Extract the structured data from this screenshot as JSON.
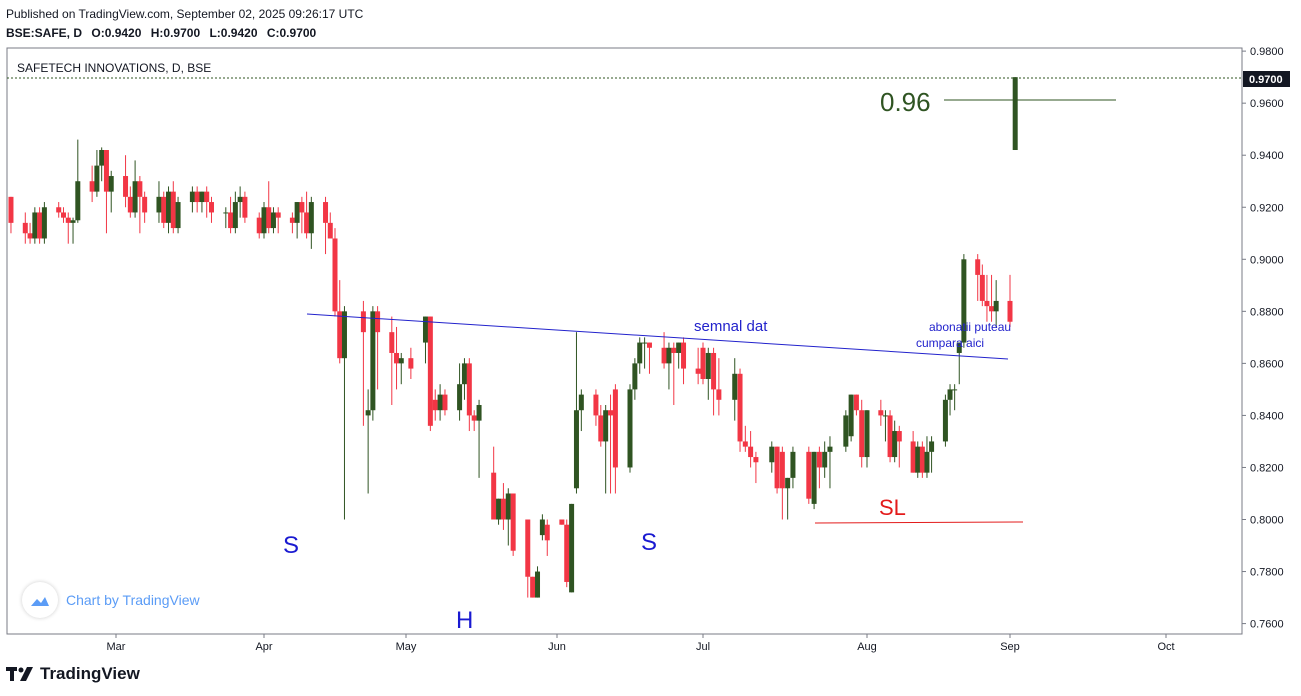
{
  "header": {
    "published": "Published on TradingView.com, September 02, 2025 09:26:17 UTC",
    "symbol": "BSE:SAFE, D",
    "open": "O:0.9420",
    "high": "H:0.9700",
    "low": "L:0.9420",
    "close": "C:0.9700"
  },
  "branding": {
    "watermark": "Chart by TradingView",
    "footer_logo": "TradingView"
  },
  "colors": {
    "up": "#2f5422",
    "down": "#f23645",
    "trendline": "#2222cc",
    "target": "#2f5422",
    "stop": "#e31b1b",
    "axis_text": "#131722",
    "price_tag_bg": "#131722"
  },
  "chart_data": {
    "type": "candlestick",
    "title": "SAFETECH INNOVATIONS, D, BSE",
    "ylim": [
      0.756,
      0.9812
    ],
    "x_ticks": [
      "Mar",
      "Apr",
      "May",
      "Jun",
      "Jul",
      "Aug",
      "Sep",
      "Oct"
    ],
    "y_ticks": [
      "0.9800",
      "0.9600",
      "0.9400",
      "0.9200",
      "0.9000",
      "0.8800",
      "0.8600",
      "0.8400",
      "0.8200",
      "0.8000",
      "0.7800",
      "0.7600"
    ],
    "last_price": "0.9700",
    "candles": [
      {
        "date": "2025-02-07",
        "o": 0.924,
        "h": 0.924,
        "l": 0.91,
        "c": 0.914
      },
      {
        "date": "2025-02-10",
        "o": 0.914,
        "h": 0.918,
        "l": 0.906,
        "c": 0.91
      },
      {
        "date": "2025-02-11",
        "o": 0.91,
        "h": 0.914,
        "l": 0.906,
        "c": 0.908
      },
      {
        "date": "2025-02-12",
        "o": 0.908,
        "h": 0.92,
        "l": 0.906,
        "c": 0.918
      },
      {
        "date": "2025-02-13",
        "o": 0.918,
        "h": 0.92,
        "l": 0.906,
        "c": 0.908
      },
      {
        "date": "2025-02-14",
        "o": 0.908,
        "h": 0.922,
        "l": 0.906,
        "c": 0.92
      },
      {
        "date": "2025-02-17",
        "o": 0.92,
        "h": 0.922,
        "l": 0.916,
        "c": 0.918
      },
      {
        "date": "2025-02-18",
        "o": 0.918,
        "h": 0.92,
        "l": 0.914,
        "c": 0.916
      },
      {
        "date": "2025-02-19",
        "o": 0.916,
        "h": 0.918,
        "l": 0.906,
        "c": 0.914
      },
      {
        "date": "2025-02-20",
        "o": 0.914,
        "h": 0.916,
        "l": 0.906,
        "c": 0.915
      },
      {
        "date": "2025-02-21",
        "o": 0.915,
        "h": 0.946,
        "l": 0.914,
        "c": 0.93
      },
      {
        "date": "2025-02-24",
        "o": 0.93,
        "h": 0.936,
        "l": 0.922,
        "c": 0.926
      },
      {
        "date": "2025-02-25",
        "o": 0.926,
        "h": 0.942,
        "l": 0.924,
        "c": 0.936
      },
      {
        "date": "2025-02-26",
        "o": 0.936,
        "h": 0.943,
        "l": 0.93,
        "c": 0.942
      },
      {
        "date": "2025-02-27",
        "o": 0.942,
        "h": 0.942,
        "l": 0.91,
        "c": 0.926
      },
      {
        "date": "2025-02-28",
        "o": 0.926,
        "h": 0.934,
        "l": 0.918,
        "c": 0.932
      },
      {
        "date": "2025-03-03",
        "o": 0.932,
        "h": 0.94,
        "l": 0.92,
        "c": 0.924
      },
      {
        "date": "2025-03-04",
        "o": 0.924,
        "h": 0.928,
        "l": 0.916,
        "c": 0.918
      },
      {
        "date": "2025-03-05",
        "o": 0.918,
        "h": 0.938,
        "l": 0.916,
        "c": 0.93
      },
      {
        "date": "2025-03-06",
        "o": 0.93,
        "h": 0.932,
        "l": 0.91,
        "c": 0.924
      },
      {
        "date": "2025-03-07",
        "o": 0.924,
        "h": 0.926,
        "l": 0.914,
        "c": 0.918
      },
      {
        "date": "2025-03-10",
        "o": 0.918,
        "h": 0.93,
        "l": 0.914,
        "c": 0.924
      },
      {
        "date": "2025-03-11",
        "o": 0.924,
        "h": 0.926,
        "l": 0.912,
        "c": 0.914
      },
      {
        "date": "2025-03-12",
        "o": 0.914,
        "h": 0.928,
        "l": 0.91,
        "c": 0.926
      },
      {
        "date": "2025-03-13",
        "o": 0.926,
        "h": 0.93,
        "l": 0.91,
        "c": 0.912
      },
      {
        "date": "2025-03-14",
        "o": 0.912,
        "h": 0.924,
        "l": 0.91,
        "c": 0.922
      },
      {
        "date": "2025-03-17",
        "o": 0.922,
        "h": 0.928,
        "l": 0.918,
        "c": 0.926
      },
      {
        "date": "2025-03-18",
        "o": 0.926,
        "h": 0.928,
        "l": 0.918,
        "c": 0.922
      },
      {
        "date": "2025-03-19",
        "o": 0.922,
        "h": 0.926,
        "l": 0.918,
        "c": 0.926
      },
      {
        "date": "2025-03-20",
        "o": 0.926,
        "h": 0.928,
        "l": 0.916,
        "c": 0.922
      },
      {
        "date": "2025-03-21",
        "o": 0.922,
        "h": 0.924,
        "l": 0.914,
        "c": 0.918
      },
      {
        "date": "2025-03-24",
        "o": 0.918,
        "h": 0.92,
        "l": 0.912,
        "c": 0.918
      },
      {
        "date": "2025-03-25",
        "o": 0.918,
        "h": 0.924,
        "l": 0.91,
        "c": 0.912
      },
      {
        "date": "2025-03-26",
        "o": 0.912,
        "h": 0.926,
        "l": 0.91,
        "c": 0.922
      },
      {
        "date": "2025-03-27",
        "o": 0.922,
        "h": 0.928,
        "l": 0.916,
        "c": 0.924
      },
      {
        "date": "2025-03-28",
        "o": 0.924,
        "h": 0.926,
        "l": 0.914,
        "c": 0.916
      },
      {
        "date": "2025-03-31",
        "o": 0.916,
        "h": 0.918,
        "l": 0.908,
        "c": 0.91
      },
      {
        "date": "2025-04-01",
        "o": 0.91,
        "h": 0.922,
        "l": 0.908,
        "c": 0.92
      },
      {
        "date": "2025-04-02",
        "o": 0.92,
        "h": 0.93,
        "l": 0.91,
        "c": 0.912
      },
      {
        "date": "2025-04-03",
        "o": 0.912,
        "h": 0.92,
        "l": 0.91,
        "c": 0.918
      },
      {
        "date": "2025-04-04",
        "o": 0.918,
        "h": 0.92,
        "l": 0.91,
        "c": 0.916
      },
      {
        "date": "2025-04-07",
        "o": 0.916,
        "h": 0.918,
        "l": 0.91,
        "c": 0.914
      },
      {
        "date": "2025-04-08",
        "o": 0.914,
        "h": 0.922,
        "l": 0.908,
        "c": 0.922
      },
      {
        "date": "2025-04-09",
        "o": 0.922,
        "h": 0.924,
        "l": 0.91,
        "c": 0.918
      },
      {
        "date": "2025-04-10",
        "o": 0.918,
        "h": 0.926,
        "l": 0.908,
        "c": 0.91
      },
      {
        "date": "2025-04-11",
        "o": 0.91,
        "h": 0.924,
        "l": 0.904,
        "c": 0.922
      },
      {
        "date": "2025-04-14",
        "o": 0.922,
        "h": 0.924,
        "l": 0.902,
        "c": 0.914
      },
      {
        "date": "2025-04-15",
        "o": 0.914,
        "h": 0.918,
        "l": 0.908,
        "c": 0.908
      },
      {
        "date": "2025-04-16",
        "o": 0.908,
        "h": 0.912,
        "l": 0.878,
        "c": 0.88
      },
      {
        "date": "2025-04-17",
        "o": 0.88,
        "h": 0.892,
        "l": 0.86,
        "c": 0.862
      },
      {
        "date": "2025-04-18",
        "o": 0.862,
        "h": 0.882,
        "l": 0.8,
        "c": 0.88
      },
      {
        "date": "2025-04-22",
        "o": 0.88,
        "h": 0.884,
        "l": 0.836,
        "c": 0.872
      },
      {
        "date": "2025-04-23",
        "o": 0.84,
        "h": 0.85,
        "l": 0.81,
        "c": 0.842
      },
      {
        "date": "2025-04-24",
        "o": 0.842,
        "h": 0.882,
        "l": 0.838,
        "c": 0.88
      },
      {
        "date": "2025-04-25",
        "o": 0.88,
        "h": 0.882,
        "l": 0.85,
        "c": 0.872
      },
      {
        "date": "2025-04-28",
        "o": 0.872,
        "h": 0.878,
        "l": 0.844,
        "c": 0.864
      },
      {
        "date": "2025-04-29",
        "o": 0.864,
        "h": 0.874,
        "l": 0.85,
        "c": 0.86
      },
      {
        "date": "2025-04-30",
        "o": 0.86,
        "h": 0.864,
        "l": 0.852,
        "c": 0.862
      },
      {
        "date": "2025-05-02",
        "o": 0.862,
        "h": 0.866,
        "l": 0.854,
        "c": 0.858
      },
      {
        "date": "2025-05-05",
        "o": 0.868,
        "h": 0.878,
        "l": 0.86,
        "c": 0.878
      },
      {
        "date": "2025-05-06",
        "o": 0.878,
        "h": 0.878,
        "l": 0.834,
        "c": 0.836
      },
      {
        "date": "2025-05-07",
        "o": 0.846,
        "h": 0.85,
        "l": 0.838,
        "c": 0.842
      },
      {
        "date": "2025-05-08",
        "o": 0.842,
        "h": 0.852,
        "l": 0.838,
        "c": 0.848
      },
      {
        "date": "2025-05-09",
        "o": 0.848,
        "h": 0.85,
        "l": 0.84,
        "c": 0.842
      },
      {
        "date": "2025-05-12",
        "o": 0.842,
        "h": 0.86,
        "l": 0.838,
        "c": 0.852
      },
      {
        "date": "2025-05-13",
        "o": 0.852,
        "h": 0.862,
        "l": 0.846,
        "c": 0.86
      },
      {
        "date": "2025-05-14",
        "o": 0.86,
        "h": 0.862,
        "l": 0.834,
        "c": 0.84
      },
      {
        "date": "2025-05-15",
        "o": 0.84,
        "h": 0.842,
        "l": 0.834,
        "c": 0.838
      },
      {
        "date": "2025-05-16",
        "o": 0.838,
        "h": 0.846,
        "l": 0.816,
        "c": 0.844
      },
      {
        "date": "2025-05-19",
        "o": 0.818,
        "h": 0.828,
        "l": 0.8,
        "c": 0.8
      },
      {
        "date": "2025-05-20",
        "o": 0.8,
        "h": 0.808,
        "l": 0.798,
        "c": 0.808
      },
      {
        "date": "2025-05-21",
        "o": 0.808,
        "h": 0.814,
        "l": 0.796,
        "c": 0.8
      },
      {
        "date": "2025-05-22",
        "o": 0.8,
        "h": 0.812,
        "l": 0.79,
        "c": 0.81
      },
      {
        "date": "2025-05-23",
        "o": 0.81,
        "h": 0.81,
        "l": 0.786,
        "c": 0.788
      },
      {
        "date": "2025-05-26",
        "o": 0.8,
        "h": 0.8,
        "l": 0.77,
        "c": 0.778
      },
      {
        "date": "2025-05-27",
        "o": 0.778,
        "h": 0.778,
        "l": 0.77,
        "c": 0.77
      },
      {
        "date": "2025-05-28",
        "o": 0.77,
        "h": 0.782,
        "l": 0.77,
        "c": 0.78
      },
      {
        "date": "2025-05-29",
        "o": 0.794,
        "h": 0.802,
        "l": 0.792,
        "c": 0.8
      },
      {
        "date": "2025-05-30",
        "o": 0.798,
        "h": 0.8,
        "l": 0.786,
        "c": 0.792
      },
      {
        "date": "2025-06-02",
        "o": 0.8,
        "h": 0.8,
        "l": 0.798,
        "c": 0.798
      },
      {
        "date": "2025-06-03",
        "o": 0.798,
        "h": 0.8,
        "l": 0.774,
        "c": 0.776
      },
      {
        "date": "2025-06-04",
        "o": 0.772,
        "h": 0.806,
        "l": 0.772,
        "c": 0.806
      },
      {
        "date": "2025-06-05",
        "o": 0.812,
        "h": 0.872,
        "l": 0.81,
        "c": 0.842
      },
      {
        "date": "2025-06-06",
        "o": 0.842,
        "h": 0.85,
        "l": 0.834,
        "c": 0.848
      },
      {
        "date": "2025-06-09",
        "o": 0.848,
        "h": 0.85,
        "l": 0.836,
        "c": 0.84
      },
      {
        "date": "2025-06-10",
        "o": 0.84,
        "h": 0.844,
        "l": 0.828,
        "c": 0.83
      },
      {
        "date": "2025-06-11",
        "o": 0.83,
        "h": 0.844,
        "l": 0.81,
        "c": 0.842
      },
      {
        "date": "2025-06-12",
        "o": 0.842,
        "h": 0.848,
        "l": 0.81,
        "c": 0.84
      },
      {
        "date": "2025-06-13",
        "o": 0.85,
        "h": 0.852,
        "l": 0.81,
        "c": 0.82
      },
      {
        "date": "2025-06-16",
        "o": 0.82,
        "h": 0.852,
        "l": 0.818,
        "c": 0.85
      },
      {
        "date": "2025-06-17",
        "o": 0.85,
        "h": 0.862,
        "l": 0.846,
        "c": 0.86
      },
      {
        "date": "2025-06-18",
        "o": 0.86,
        "h": 0.87,
        "l": 0.856,
        "c": 0.868
      },
      {
        "date": "2025-06-19",
        "o": 0.868,
        "h": 0.87,
        "l": 0.858,
        "c": 0.868
      },
      {
        "date": "2025-06-20",
        "o": 0.868,
        "h": 0.868,
        "l": 0.856,
        "c": 0.866
      },
      {
        "date": "2025-06-23",
        "o": 0.866,
        "h": 0.872,
        "l": 0.858,
        "c": 0.86
      },
      {
        "date": "2025-06-24",
        "o": 0.86,
        "h": 0.868,
        "l": 0.85,
        "c": 0.866
      },
      {
        "date": "2025-06-25",
        "o": 0.866,
        "h": 0.868,
        "l": 0.844,
        "c": 0.864
      },
      {
        "date": "2025-06-26",
        "o": 0.864,
        "h": 0.868,
        "l": 0.858,
        "c": 0.868
      },
      {
        "date": "2025-06-27",
        "o": 0.868,
        "h": 0.87,
        "l": 0.852,
        "c": 0.858
      },
      {
        "date": "2025-06-30",
        "o": 0.858,
        "h": 0.866,
        "l": 0.852,
        "c": 0.856
      },
      {
        "date": "2025-07-01",
        "o": 0.866,
        "h": 0.868,
        "l": 0.852,
        "c": 0.854
      },
      {
        "date": "2025-07-02",
        "o": 0.854,
        "h": 0.866,
        "l": 0.846,
        "c": 0.864
      },
      {
        "date": "2025-07-03",
        "o": 0.864,
        "h": 0.866,
        "l": 0.84,
        "c": 0.85
      },
      {
        "date": "2025-07-04",
        "o": 0.85,
        "h": 0.862,
        "l": 0.84,
        "c": 0.846
      },
      {
        "date": "2025-07-07",
        "o": 0.846,
        "h": 0.862,
        "l": 0.838,
        "c": 0.856
      },
      {
        "date": "2025-07-08",
        "o": 0.856,
        "h": 0.858,
        "l": 0.826,
        "c": 0.83
      },
      {
        "date": "2025-07-09",
        "o": 0.83,
        "h": 0.836,
        "l": 0.826,
        "c": 0.828
      },
      {
        "date": "2025-07-10",
        "o": 0.828,
        "h": 0.834,
        "l": 0.82,
        "c": 0.824
      },
      {
        "date": "2025-07-11",
        "o": 0.824,
        "h": 0.826,
        "l": 0.814,
        "c": 0.822
      },
      {
        "date": "2025-07-14",
        "o": 0.822,
        "h": 0.83,
        "l": 0.818,
        "c": 0.828
      },
      {
        "date": "2025-07-15",
        "o": 0.828,
        "h": 0.828,
        "l": 0.81,
        "c": 0.812
      },
      {
        "date": "2025-07-16",
        "o": 0.826,
        "h": 0.828,
        "l": 0.8,
        "c": 0.812
      },
      {
        "date": "2025-07-17",
        "o": 0.812,
        "h": 0.816,
        "l": 0.8,
        "c": 0.816
      },
      {
        "date": "2025-07-18",
        "o": 0.816,
        "h": 0.828,
        "l": 0.812,
        "c": 0.826
      },
      {
        "date": "2025-07-21",
        "o": 0.826,
        "h": 0.828,
        "l": 0.806,
        "c": 0.808
      },
      {
        "date": "2025-07-22",
        "o": 0.806,
        "h": 0.826,
        "l": 0.804,
        "c": 0.826
      },
      {
        "date": "2025-07-23",
        "o": 0.826,
        "h": 0.828,
        "l": 0.812,
        "c": 0.82
      },
      {
        "date": "2025-07-24",
        "o": 0.82,
        "h": 0.83,
        "l": 0.816,
        "c": 0.826
      },
      {
        "date": "2025-07-25",
        "o": 0.826,
        "h": 0.832,
        "l": 0.812,
        "c": 0.828
      },
      {
        "date": "2025-07-28",
        "o": 0.828,
        "h": 0.842,
        "l": 0.826,
        "c": 0.84
      },
      {
        "date": "2025-07-29",
        "o": 0.832,
        "h": 0.848,
        "l": 0.83,
        "c": 0.848
      },
      {
        "date": "2025-07-30",
        "o": 0.848,
        "h": 0.848,
        "l": 0.84,
        "c": 0.842
      },
      {
        "date": "2025-07-31",
        "o": 0.842,
        "h": 0.846,
        "l": 0.82,
        "c": 0.824
      },
      {
        "date": "2025-08-01",
        "o": 0.824,
        "h": 0.842,
        "l": 0.82,
        "c": 0.842
      },
      {
        "date": "2025-08-04",
        "o": 0.842,
        "h": 0.846,
        "l": 0.836,
        "c": 0.84
      },
      {
        "date": "2025-08-05",
        "o": 0.84,
        "h": 0.842,
        "l": 0.83,
        "c": 0.84
      },
      {
        "date": "2025-08-06",
        "o": 0.84,
        "h": 0.842,
        "l": 0.822,
        "c": 0.824
      },
      {
        "date": "2025-08-07",
        "o": 0.824,
        "h": 0.838,
        "l": 0.822,
        "c": 0.834
      },
      {
        "date": "2025-08-08",
        "o": 0.834,
        "h": 0.836,
        "l": 0.82,
        "c": 0.83
      },
      {
        "date": "2025-08-11",
        "o": 0.83,
        "h": 0.834,
        "l": 0.818,
        "c": 0.818
      },
      {
        "date": "2025-08-12",
        "o": 0.818,
        "h": 0.83,
        "l": 0.816,
        "c": 0.828
      },
      {
        "date": "2025-08-13",
        "o": 0.828,
        "h": 0.83,
        "l": 0.816,
        "c": 0.818
      },
      {
        "date": "2025-08-14",
        "o": 0.818,
        "h": 0.832,
        "l": 0.816,
        "c": 0.826
      },
      {
        "date": "2025-08-15",
        "o": 0.826,
        "h": 0.832,
        "l": 0.818,
        "c": 0.83
      },
      {
        "date": "2025-08-18",
        "o": 0.83,
        "h": 0.848,
        "l": 0.828,
        "c": 0.846
      },
      {
        "date": "2025-08-19",
        "o": 0.846,
        "h": 0.852,
        "l": 0.84,
        "c": 0.85
      },
      {
        "date": "2025-08-20",
        "o": 0.85,
        "h": 0.852,
        "l": 0.842,
        "c": 0.85
      },
      {
        "date": "2025-08-21",
        "o": 0.864,
        "h": 0.868,
        "l": 0.852,
        "c": 0.868
      },
      {
        "date": "2025-08-22",
        "o": 0.868,
        "h": 0.902,
        "l": 0.866,
        "c": 0.9
      },
      {
        "date": "2025-08-25",
        "o": 0.9,
        "h": 0.902,
        "l": 0.884,
        "c": 0.894
      },
      {
        "date": "2025-08-26",
        "o": 0.894,
        "h": 0.898,
        "l": 0.882,
        "c": 0.884
      },
      {
        "date": "2025-08-27",
        "o": 0.884,
        "h": 0.894,
        "l": 0.876,
        "c": 0.882
      },
      {
        "date": "2025-08-28",
        "o": 0.882,
        "h": 0.894,
        "l": 0.876,
        "c": 0.88
      },
      {
        "date": "2025-08-29",
        "o": 0.88,
        "h": 0.892,
        "l": 0.874,
        "c": 0.884
      },
      {
        "date": "2025-09-01",
        "o": 0.884,
        "h": 0.894,
        "l": 0.874,
        "c": 0.876
      },
      {
        "date": "2025-09-02",
        "o": 0.942,
        "h": 0.97,
        "l": 0.942,
        "c": 0.97
      }
    ],
    "annotations": {
      "target_label": "0.96",
      "stop_label": "SL",
      "signal_label": "semnal dat",
      "note_line1": "abonatii puteau",
      "note_line2": "cumpara aici",
      "left_shoulder": "S",
      "head": "H",
      "right_shoulder": "S"
    }
  }
}
